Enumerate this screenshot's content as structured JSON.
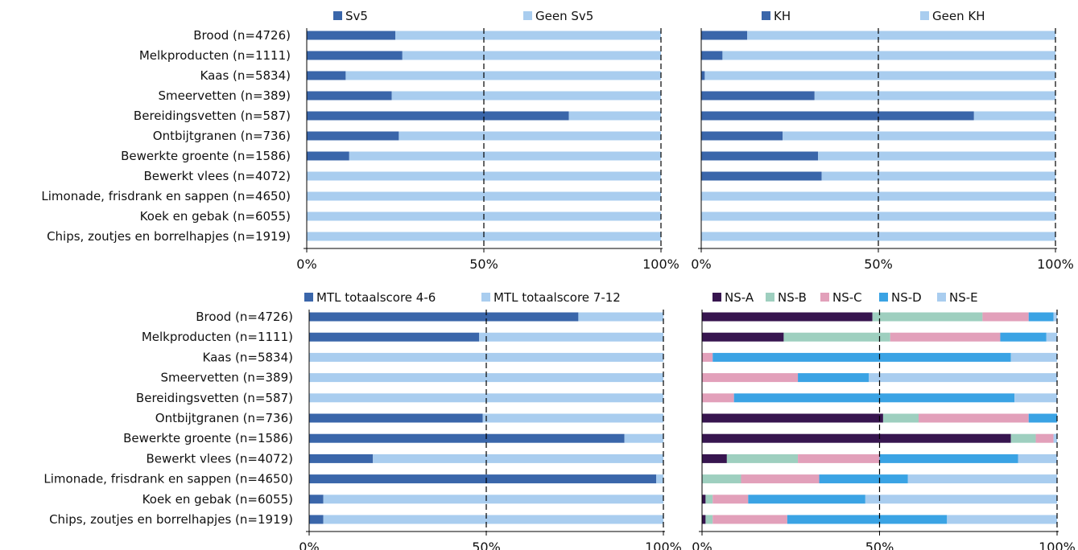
{
  "chart_data": [
    {
      "type": "bar",
      "orientation": "horizontal",
      "stacked": true,
      "categories": [
        "Brood (n=4726)",
        "Melkproducten (n=1111)",
        "Kaas (n=5834)",
        "Smeervetten (n=389)",
        "Bereidingsvetten (n=587)",
        "Ontbijtgranen (n=736)",
        "Bewerkte groente (n=1586)",
        "Bewerkt vlees (n=4072)",
        "Limonade, frisdrank en sappen (n=4650)",
        "Koek en gebak (n=6055)",
        "Chips, zoutjes en borrelhapjes (n=1919)"
      ],
      "series": [
        {
          "name": "Sv5",
          "color": "#3A66AA",
          "values": [
            25,
            27,
            11,
            24,
            74,
            26,
            12,
            0,
            0,
            0,
            0
          ]
        },
        {
          "name": "Geen Sv5",
          "color": "#A9CDEF",
          "values": [
            75,
            73,
            89,
            76,
            26,
            74,
            88,
            100,
            100,
            100,
            100
          ]
        }
      ],
      "xlim": [
        0,
        100
      ],
      "xticks": [
        "0%",
        "50%",
        "100%"
      ],
      "legend_position": "top"
    },
    {
      "type": "bar",
      "orientation": "horizontal",
      "stacked": true,
      "categories": [
        "Brood (n=4726)",
        "Melkproducten (n=1111)",
        "Kaas (n=5834)",
        "Smeervetten (n=389)",
        "Bereidingsvetten (n=587)",
        "Ontbijtgranen (n=736)",
        "Bewerkte groente (n=1586)",
        "Bewerkt vlees (n=4072)",
        "Limonade, frisdrank en sappen (n=4650)",
        "Koek en gebak (n=6055)",
        "Chips, zoutjes en borrelhapjes (n=1919)"
      ],
      "series": [
        {
          "name": "KH",
          "color": "#3A66AA",
          "values": [
            13,
            6,
            1,
            32,
            77,
            23,
            33,
            34,
            0,
            0,
            0
          ]
        },
        {
          "name": "Geen KH",
          "color": "#A9CDEF",
          "values": [
            87,
            94,
            99,
            68,
            23,
            77,
            67,
            66,
            100,
            100,
            100
          ]
        }
      ],
      "xlim": [
        0,
        100
      ],
      "xticks": [
        "0%",
        "50%",
        "100%"
      ],
      "legend_position": "top"
    },
    {
      "type": "bar",
      "orientation": "horizontal",
      "stacked": true,
      "categories": [
        "Brood (n=4726)",
        "Melkproducten (n=1111)",
        "Kaas (n=5834)",
        "Smeervetten (n=389)",
        "Bereidingsvetten (n=587)",
        "Ontbijtgranen (n=736)",
        "Bewerkte groente (n=1586)",
        "Bewerkt vlees (n=4072)",
        "Limonade, frisdrank en sappen (n=4650)",
        "Koek en gebak (n=6055)",
        "Chips, zoutjes en borrelhapjes (n=1919)"
      ],
      "series": [
        {
          "name": "MTL totaalscore 4-6",
          "color": "#3A66AA",
          "values": [
            76,
            48,
            0,
            0,
            0,
            49,
            89,
            18,
            98,
            4,
            4
          ]
        },
        {
          "name": "MTL totaalscore 7-12",
          "color": "#A9CDEF",
          "values": [
            24,
            52,
            100,
            100,
            100,
            51,
            11,
            82,
            2,
            96,
            96
          ]
        }
      ],
      "xlim": [
        0,
        100
      ],
      "xticks": [
        "0%",
        "50%",
        "100%"
      ],
      "legend_position": "top"
    },
    {
      "type": "bar",
      "orientation": "horizontal",
      "stacked": true,
      "categories": [
        "Brood (n=4726)",
        "Melkproducten (n=1111)",
        "Kaas (n=5834)",
        "Smeervetten (n=389)",
        "Bereidingsvetten (n=587)",
        "Ontbijtgranen (n=736)",
        "Bewerkte groente (n=1586)",
        "Bewerkt vlees (n=4072)",
        "Limonade, frisdrank en sappen (n=4650)",
        "Koek en gebak (n=6055)",
        "Chips, zoutjes en borrelhapjes (n=1919)"
      ],
      "series": [
        {
          "name": "NS-A",
          "color": "#37154F",
          "values": [
            48,
            23,
            0,
            0,
            0,
            51,
            87,
            7,
            0,
            1,
            1
          ]
        },
        {
          "name": "NS-B",
          "color": "#9ECFBF",
          "values": [
            31,
            30,
            0,
            0,
            0,
            10,
            7,
            20,
            11,
            2,
            2
          ]
        },
        {
          "name": "NS-C",
          "color": "#E2A0BA",
          "values": [
            13,
            31,
            3,
            27,
            9,
            31,
            5,
            23,
            22,
            10,
            21
          ]
        },
        {
          "name": "NS-D",
          "color": "#3AA3E4",
          "values": [
            7,
            13,
            84,
            20,
            79,
            8,
            0,
            39,
            25,
            33,
            45
          ]
        },
        {
          "name": "NS-E",
          "color": "#A9CDEF",
          "values": [
            1,
            3,
            13,
            53,
            12,
            0,
            1,
            11,
            42,
            54,
            31
          ]
        }
      ],
      "xlim": [
        0,
        100
      ],
      "xticks": [
        "0%",
        "50%",
        "100%"
      ],
      "legend_position": "top"
    }
  ]
}
